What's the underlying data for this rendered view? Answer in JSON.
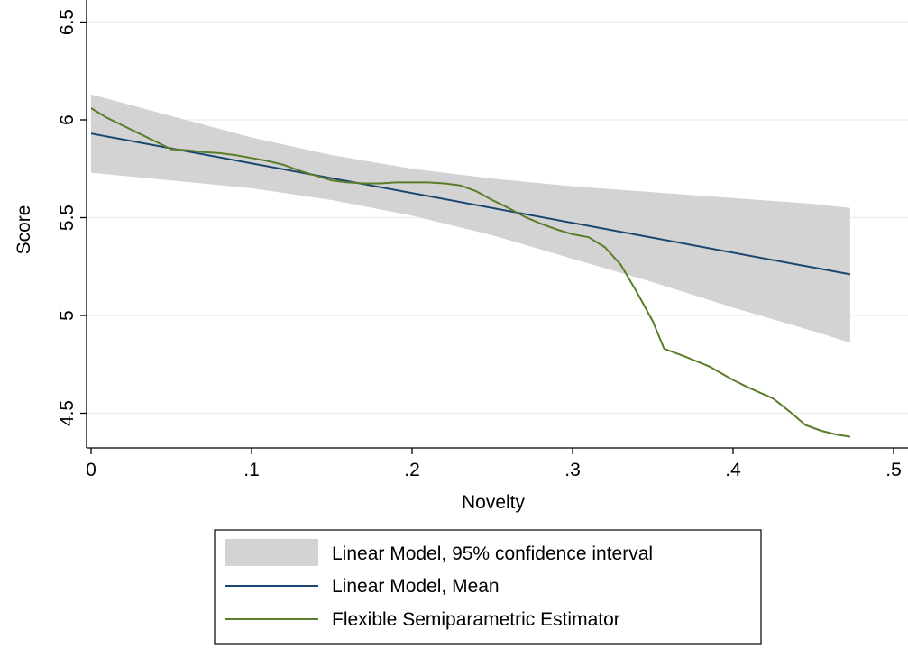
{
  "chart_data": {
    "type": "line",
    "title": "",
    "xlabel": "Novelty",
    "ylabel": "Score",
    "xlim": [
      0,
      0.5
    ],
    "ylim": [
      4.4,
      6.5
    ],
    "xticks": [
      0,
      0.1,
      0.2,
      0.3,
      0.4,
      0.5
    ],
    "xtick_labels": [
      "0",
      ".1",
      ".2",
      ".3",
      ".4",
      ".5"
    ],
    "yticks": [
      4.5,
      5,
      5.5,
      6,
      6.5
    ],
    "ytick_labels": [
      "4.5",
      "5",
      "5.5",
      "6",
      "6.5"
    ],
    "grid": true,
    "legend_position": "bottom",
    "colors": {
      "band": "#d3d3d3",
      "mean": "#1a476f",
      "flexible": "#5a7d2a",
      "grid": "#eaf2f3"
    },
    "series": [
      {
        "name": "Linear Model, 95% confidence interval",
        "kind": "band",
        "x": [
          0,
          0.05,
          0.1,
          0.15,
          0.2,
          0.25,
          0.3,
          0.35,
          0.4,
          0.45,
          0.473
        ],
        "lower": [
          5.73,
          5.69,
          5.65,
          5.59,
          5.51,
          5.41,
          5.29,
          5.17,
          5.04,
          4.92,
          4.86
        ],
        "upper": [
          6.13,
          6.02,
          5.91,
          5.82,
          5.75,
          5.7,
          5.66,
          5.63,
          5.6,
          5.57,
          5.55
        ]
      },
      {
        "name": "Linear Model, Mean",
        "kind": "line",
        "x": [
          0,
          0.473
        ],
        "y": [
          5.93,
          5.21
        ]
      },
      {
        "name": "Flexible Semiparametric Estimator",
        "kind": "line",
        "x": [
          0,
          0.01,
          0.02,
          0.03,
          0.04,
          0.05,
          0.06,
          0.07,
          0.08,
          0.09,
          0.1,
          0.11,
          0.12,
          0.13,
          0.14,
          0.15,
          0.16,
          0.17,
          0.18,
          0.19,
          0.2,
          0.21,
          0.22,
          0.23,
          0.24,
          0.25,
          0.26,
          0.27,
          0.28,
          0.29,
          0.3,
          0.31,
          0.32,
          0.33,
          0.34,
          0.35,
          0.357,
          0.37,
          0.385,
          0.4,
          0.41,
          0.425,
          0.435,
          0.445,
          0.455,
          0.465,
          0.473
        ],
        "y": [
          6.06,
          6.01,
          5.97,
          5.93,
          5.89,
          5.85,
          5.845,
          5.835,
          5.83,
          5.82,
          5.805,
          5.79,
          5.77,
          5.74,
          5.715,
          5.69,
          5.68,
          5.675,
          5.675,
          5.68,
          5.68,
          5.68,
          5.675,
          5.665,
          5.635,
          5.59,
          5.55,
          5.505,
          5.47,
          5.44,
          5.415,
          5.4,
          5.35,
          5.26,
          5.12,
          4.97,
          4.83,
          4.79,
          4.74,
          4.67,
          4.63,
          4.575,
          4.51,
          4.44,
          4.41,
          4.39,
          4.38
        ]
      }
    ]
  }
}
